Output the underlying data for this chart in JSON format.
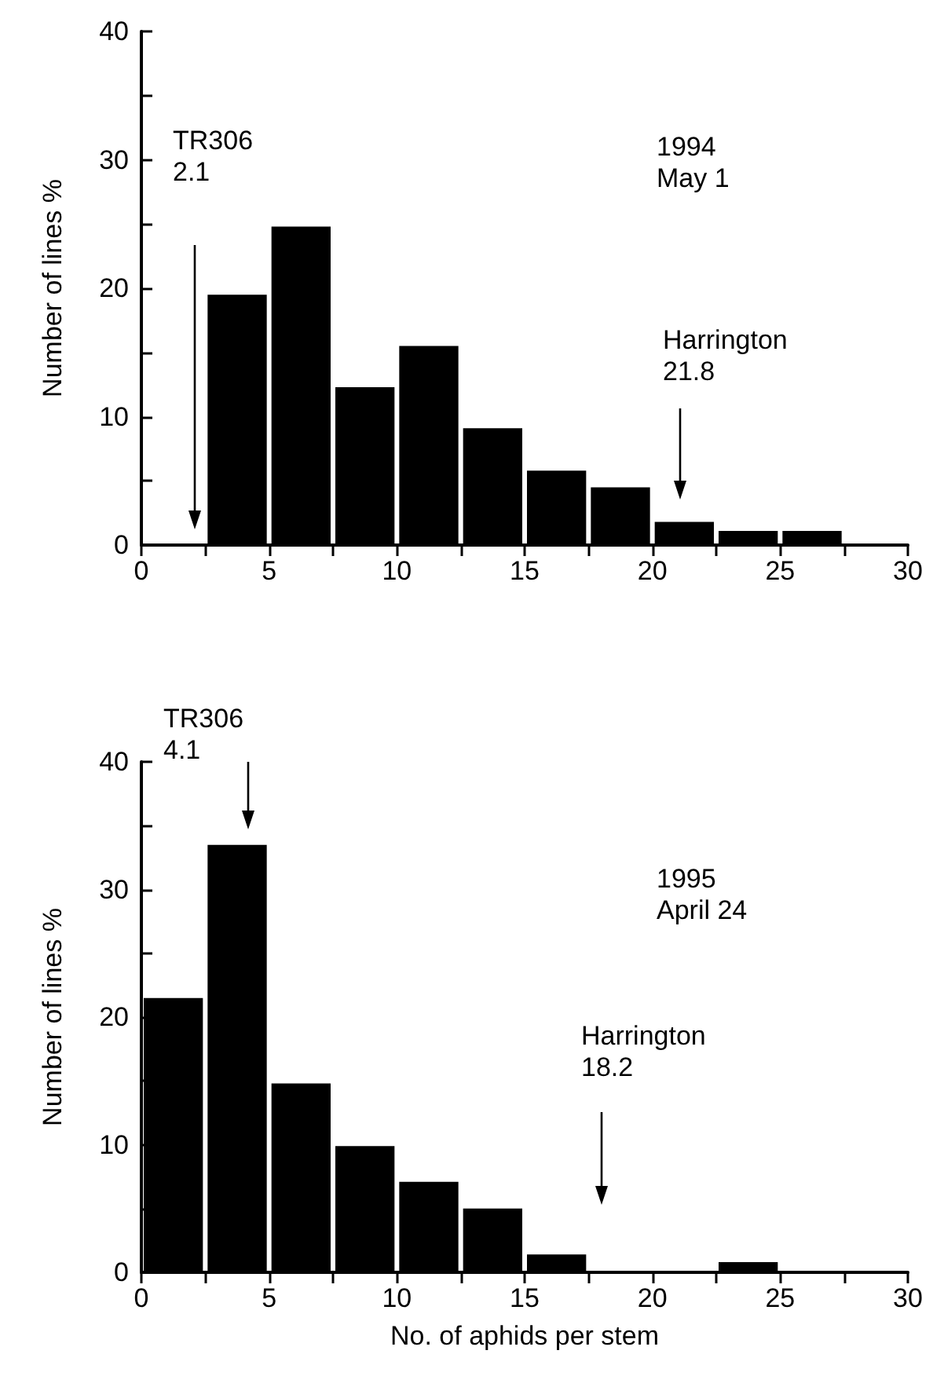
{
  "chart_data": [
    {
      "type": "histogram",
      "ylabel": "Number of lines %",
      "bins": [
        2.5,
        5,
        7.5,
        10,
        12.5,
        15,
        17.5,
        20,
        22.5,
        25,
        27.5
      ],
      "values": [
        19.5,
        24.8,
        12.3,
        15.5,
        9.1,
        5.8,
        4.5,
        1.8,
        1.1,
        1.1
      ],
      "color": "#000000",
      "xlim": [
        0,
        30
      ],
      "ylim": [
        0,
        40
      ],
      "xticks": [
        0,
        {
          "value": 2.5,
          "label": null
        },
        5,
        {
          "value": 7.5,
          "label": null
        },
        10,
        {
          "value": 12.5,
          "label": null
        },
        15,
        {
          "value": 17.5,
          "label": null
        },
        20,
        {
          "value": 22.5,
          "label": null
        },
        25,
        {
          "value": 27.5,
          "label": null
        },
        30
      ],
      "yticks": [
        0,
        {
          "value": 5,
          "label": null
        },
        10,
        {
          "value": 15,
          "label": null
        },
        20,
        {
          "value": 25,
          "label": null
        },
        30,
        {
          "value": 35,
          "label": null
        },
        40
      ],
      "annotations": [
        "TR306\n2.1",
        "Harrington\n21.8",
        "1994\nMay 1"
      ]
    },
    {
      "type": "histogram",
      "ylabel": "Number of lines %",
      "xlabel": "No. of aphids per stem",
      "bins": [
        0,
        2.5,
        5,
        7.5,
        10,
        12.5,
        15,
        17.5,
        20,
        22.5,
        25
      ],
      "values": [
        21.5,
        33.5,
        14.8,
        9.9,
        7.1,
        5.0,
        1.4,
        0,
        0,
        0.8
      ],
      "color": "#000000",
      "xlim": [
        0,
        30
      ],
      "ylim": [
        0,
        40
      ],
      "xticks": [
        0,
        {
          "value": 2.5,
          "label": null
        },
        5,
        {
          "value": 7.5,
          "label": null
        },
        10,
        {
          "value": 12.5,
          "label": null
        },
        15,
        {
          "value": 17.5,
          "label": null
        },
        20,
        {
          "value": 22.5,
          "label": null
        },
        25,
        {
          "value": 27.5,
          "label": null
        },
        30
      ],
      "yticks": [
        0,
        {
          "value": 5,
          "label": null
        },
        10,
        {
          "value": 15,
          "label": null
        },
        20,
        {
          "value": 25,
          "label": null
        },
        30,
        {
          "value": 35,
          "label": null
        },
        40
      ],
      "annotations": [
        "TR306\n4.1",
        "Harrington\n18.2",
        "1995\nApril 24"
      ]
    }
  ]
}
